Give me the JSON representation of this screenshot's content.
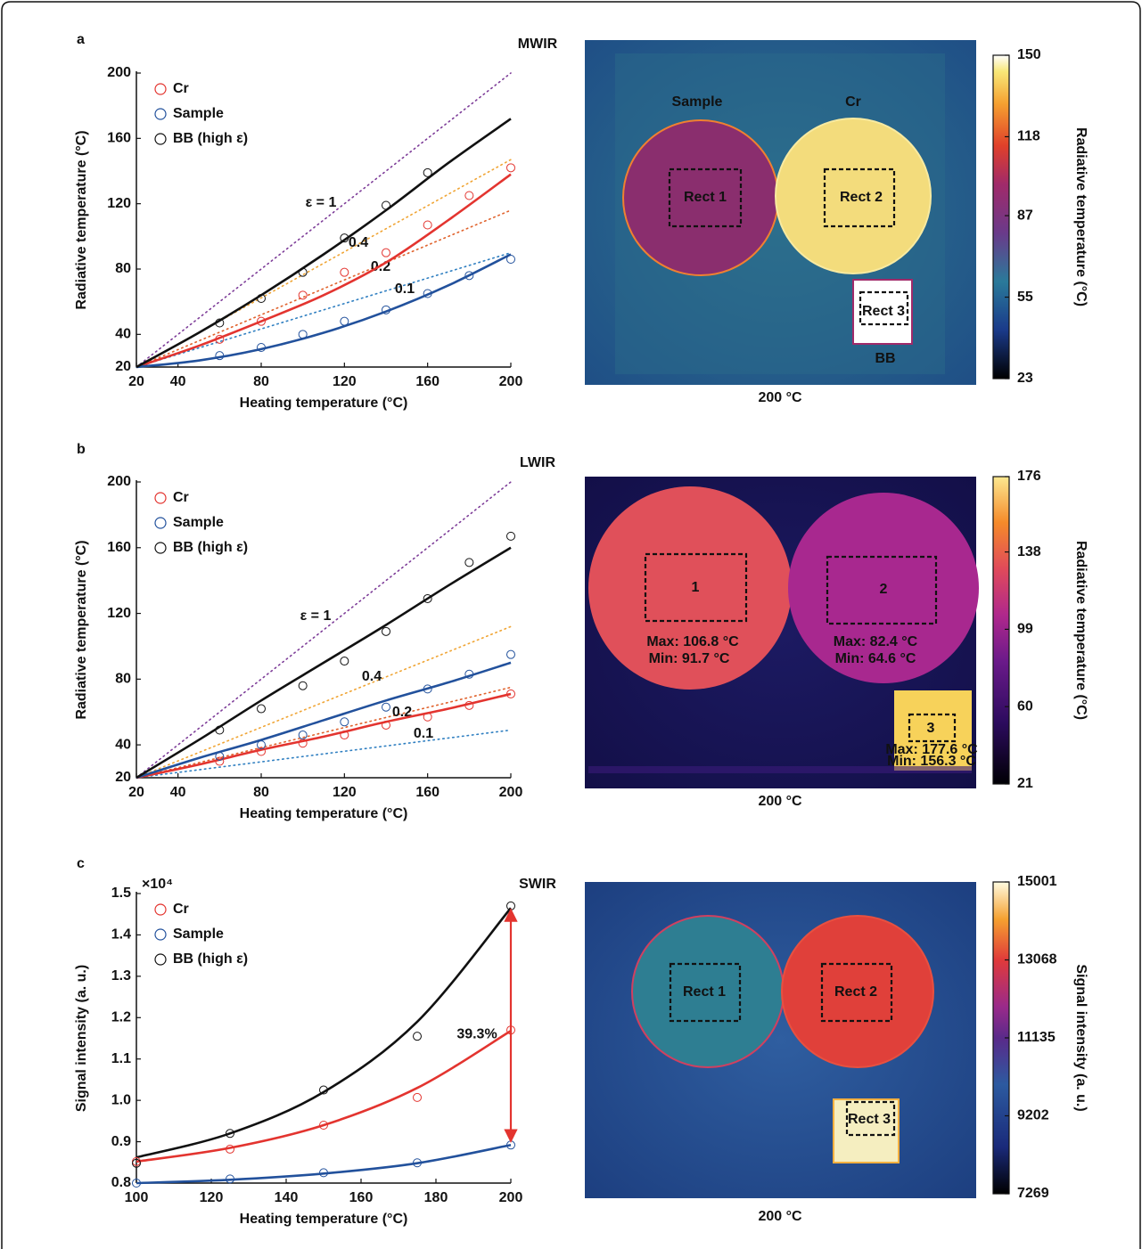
{
  "chart_data": [
    {
      "type": "line",
      "panel": "a",
      "xlabel": "Heating temperature (°C)",
      "ylabel": "Radiative temperature (°C)",
      "xlim": [
        20,
        200
      ],
      "ylim": [
        20,
        200
      ],
      "xticks": [
        20,
        40,
        80,
        120,
        160,
        200
      ],
      "yticks": [
        20,
        40,
        80,
        120,
        160,
        200
      ],
      "series": [
        {
          "name": "Cr",
          "color": "#e3342f",
          "x": [
            60,
            80,
            100,
            120,
            140,
            160,
            180,
            200
          ],
          "values": [
            37,
            48,
            64,
            78,
            90,
            107,
            125,
            142
          ],
          "fit_x": [
            20,
            50,
            80,
            110,
            140,
            170,
            200
          ],
          "fit_values": [
            20,
            33,
            48,
            64,
            84,
            110,
            138
          ]
        },
        {
          "name": "Sample",
          "color": "#22519c",
          "x": [
            60,
            80,
            100,
            120,
            140,
            160,
            180,
            200
          ],
          "values": [
            27,
            32,
            40,
            48,
            55,
            65,
            76,
            86
          ],
          "fit_x": [
            20,
            50,
            80,
            110,
            140,
            170,
            200
          ],
          "fit_values": [
            20,
            24,
            31,
            41,
            54,
            70,
            89
          ]
        },
        {
          "name": "BB (high ε)",
          "color": "#111111",
          "x": [
            60,
            80,
            100,
            120,
            140,
            160
          ],
          "values": [
            47,
            62,
            78,
            99,
            119,
            139
          ],
          "fit_x": [
            20,
            50,
            80,
            110,
            140,
            170,
            200
          ],
          "fit_values": [
            20,
            41,
            64,
            89,
            116,
            145,
            172
          ]
        }
      ],
      "references": [
        {
          "label": "ε = 1",
          "color": "#7d3c98",
          "x": [
            20,
            200
          ],
          "values": [
            20,
            200
          ]
        },
        {
          "label": "0.4",
          "color": "#f0a535",
          "x": [
            20,
            200
          ],
          "values": [
            20,
            147
          ]
        },
        {
          "label": "0.2",
          "color": "#e0622c",
          "x": [
            20,
            200
          ],
          "values": [
            20,
            116
          ]
        },
        {
          "label": "0.1",
          "color": "#2f7fc1",
          "x": [
            20,
            200
          ],
          "values": [
            20,
            90
          ]
        }
      ]
    },
    {
      "type": "image",
      "title": "MWIR",
      "caption": "200 °C",
      "labels": [
        "Sample",
        "Cr",
        "Rect 1",
        "Rect 2",
        "Rect 3",
        "BB"
      ],
      "colorbar_label": "Radiative temperature (°C)",
      "clim": [
        23,
        150
      ],
      "cticks": [
        23,
        55,
        87,
        118,
        150
      ]
    },
    {
      "type": "line",
      "panel": "b",
      "xlabel": "Heating temperature (°C)",
      "ylabel": "Radiative temperature (°C)",
      "xlim": [
        20,
        200
      ],
      "ylim": [
        20,
        200
      ],
      "xticks": [
        20,
        40,
        80,
        120,
        160,
        200
      ],
      "yticks": [
        20,
        40,
        80,
        120,
        160,
        200
      ],
      "series": [
        {
          "name": "Cr",
          "color": "#e3342f",
          "x": [
            60,
            80,
            100,
            120,
            140,
            160,
            180,
            200
          ],
          "values": [
            30,
            36,
            41,
            46,
            52,
            57,
            64,
            71
          ],
          "fit_x": [
            20,
            50,
            80,
            110,
            140,
            170,
            200
          ],
          "fit_values": [
            20,
            28,
            37,
            45,
            54,
            62,
            71
          ]
        },
        {
          "name": "Sample",
          "color": "#22519c",
          "x": [
            60,
            80,
            100,
            120,
            140,
            160,
            180,
            200
          ],
          "values": [
            33,
            40,
            46,
            54,
            63,
            74,
            83,
            95
          ],
          "fit_x": [
            20,
            50,
            80,
            110,
            140,
            170,
            200
          ],
          "fit_values": [
            20,
            32,
            43,
            55,
            67,
            78,
            90
          ]
        },
        {
          "name": "BB (high ε)",
          "color": "#111111",
          "x": [
            60,
            80,
            100,
            120,
            140,
            160,
            180,
            200
          ],
          "values": [
            49,
            62,
            76,
            91,
            109,
            129,
            151,
            167
          ],
          "fit_x": [
            20,
            50,
            80,
            110,
            140,
            170,
            200
          ],
          "fit_values": [
            20,
            43,
            67,
            90,
            113,
            137,
            160
          ]
        }
      ],
      "references": [
        {
          "label": "ε = 1",
          "color": "#7d3c98",
          "x": [
            20,
            200
          ],
          "values": [
            20,
            200
          ]
        },
        {
          "label": "0.4",
          "color": "#f0a535",
          "x": [
            20,
            200
          ],
          "values": [
            20,
            112
          ]
        },
        {
          "label": "0.2",
          "color": "#e0622c",
          "x": [
            20,
            200
          ],
          "values": [
            20,
            75
          ]
        },
        {
          "label": "0.1",
          "color": "#2f7fc1",
          "x": [
            20,
            200
          ],
          "values": [
            20,
            49
          ]
        }
      ]
    },
    {
      "type": "image",
      "title": "LWIR",
      "caption": "200 °C",
      "labels": [
        "1",
        "2",
        "3",
        "Max: 106.8 °C",
        "Min: 91.7 °C",
        "Max: 82.4 °C",
        "Min: 64.6 °C",
        "Max: 177.6 °C",
        "Min: 156.3 °C"
      ],
      "colorbar_label": "Radiative temperature (°C)",
      "clim": [
        21,
        176
      ],
      "cticks": [
        21,
        60,
        99,
        138,
        176
      ]
    },
    {
      "type": "line",
      "panel": "c",
      "xlabel": "Heating temperature (°C)",
      "ylabel": "Signal intensity (a. u.)",
      "y_multiplier": "×10⁴",
      "xlim": [
        100,
        200
      ],
      "ylim": [
        0.8,
        1.5
      ],
      "xticks": [
        100,
        120,
        140,
        160,
        180,
        200
      ],
      "yticks": [
        0.8,
        0.9,
        {
          "value": 1.0,
          "label": "1.0"
        },
        1.1,
        1.2,
        1.3,
        1.4,
        1.5
      ],
      "series": [
        {
          "name": "Cr",
          "color": "#e3342f",
          "x": [
            100,
            125,
            150,
            175,
            200
          ],
          "values": [
            0.852,
            0.882,
            0.94,
            1.007,
            1.17
          ],
          "fit_x": [
            100,
            125,
            150,
            175,
            200
          ],
          "fit_values": [
            0.852,
            0.885,
            0.94,
            1.03,
            1.168
          ]
        },
        {
          "name": "Sample",
          "color": "#22519c",
          "x": [
            100,
            125,
            150,
            175,
            200
          ],
          "values": [
            0.8,
            0.81,
            0.825,
            0.849,
            0.892
          ],
          "fit_x": [
            100,
            125,
            150,
            175,
            200
          ],
          "fit_values": [
            0.8,
            0.808,
            0.823,
            0.848,
            0.892
          ]
        },
        {
          "name": "BB (high ε)",
          "color": "#111111",
          "x": [
            100,
            125,
            150,
            175,
            200
          ],
          "values": [
            0.848,
            0.92,
            1.025,
            1.155,
            1.47
          ],
          "fit_x": [
            100,
            125,
            150,
            175,
            200
          ],
          "fit_values": [
            0.862,
            0.92,
            1.02,
            1.19,
            1.465
          ]
        }
      ],
      "annotation": {
        "text": "39.3%",
        "color": "#e3342f"
      }
    },
    {
      "type": "image",
      "title": "SWIR",
      "caption": "200 °C",
      "labels": [
        "Rect 1",
        "Rect 2",
        "Rect 3"
      ],
      "colorbar_label": "Signal intensity (a. u.)",
      "clim": [
        7269,
        15001
      ],
      "cticks": [
        7269,
        9202,
        11135,
        13068,
        15001
      ]
    }
  ]
}
